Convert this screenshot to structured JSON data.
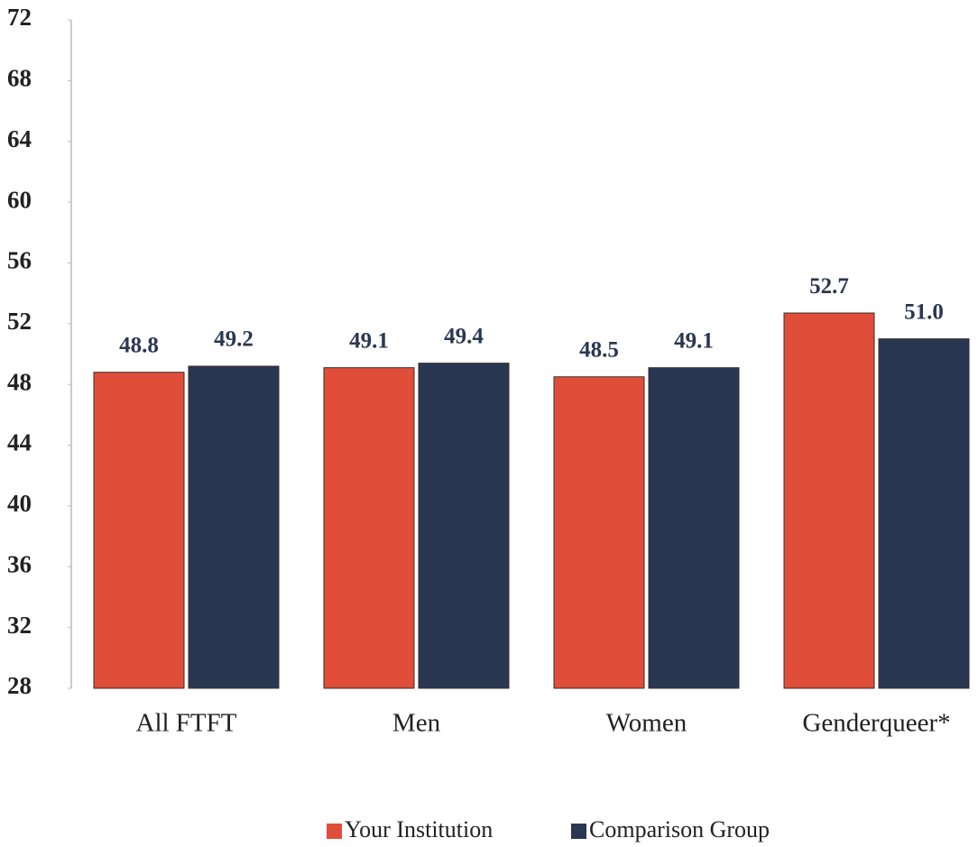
{
  "chart_data": {
    "type": "bar",
    "categories": [
      "All FTFT",
      "Men",
      "Women",
      "Genderqueer*"
    ],
    "series": [
      {
        "name": "Your Institution",
        "color": "#e04e39",
        "values": [
          48.8,
          49.1,
          48.5,
          52.7
        ],
        "value_labels": [
          "48.8",
          "49.1",
          "48.5",
          "52.7"
        ]
      },
      {
        "name": "Comparison Group",
        "color": "#2a3753",
        "values": [
          49.2,
          49.4,
          49.1,
          51.0
        ],
        "value_labels": [
          "49.2",
          "49.4",
          "49.1",
          "51.0"
        ]
      }
    ],
    "ylim": [
      28,
      72
    ],
    "yticks": [
      28,
      32,
      36,
      40,
      44,
      48,
      52,
      56,
      60,
      64,
      68,
      72
    ],
    "legend": "bottom"
  }
}
